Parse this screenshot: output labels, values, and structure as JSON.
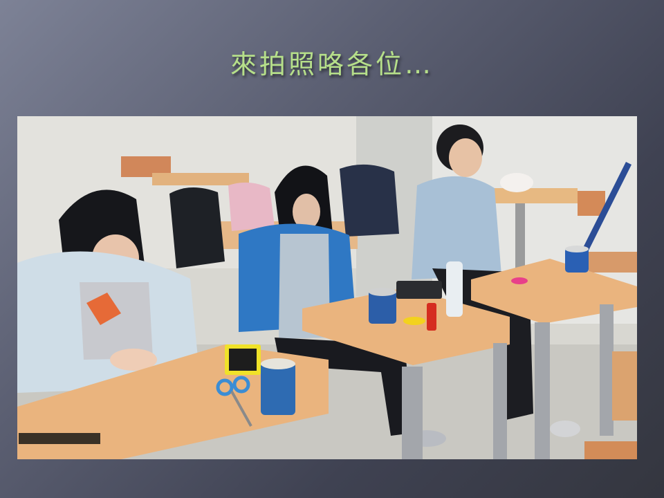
{
  "slide": {
    "title": "來拍照咯各位…"
  },
  "photo": {
    "subject": "classroom-craft-activity"
  },
  "colors": {
    "title": "#b6df8a",
    "desk": "#e8b27a",
    "shirt_blue": "#2f78c4",
    "uniform": "#a8c0d6"
  }
}
